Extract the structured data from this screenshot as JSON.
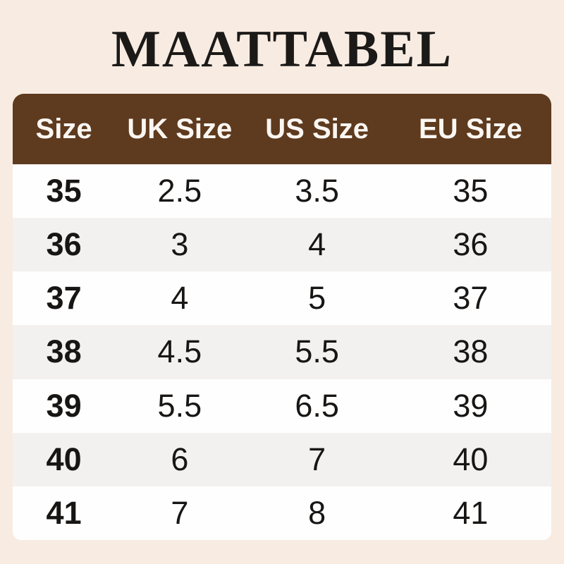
{
  "page": {
    "background_color": "#f8ece2",
    "title": "MAATTABEL",
    "title_color": "#1c1a18"
  },
  "table": {
    "header_bg_color": "#5e3a1e",
    "header_text_color": "#faf6f2",
    "row_bg_color": "#fefefe",
    "row_alt_bg_color": "#f2f1ef",
    "cell_text_color": "#181614",
    "columns": [
      "Size",
      "UK Size",
      "US Size",
      "EU Size"
    ],
    "rows": [
      [
        "35",
        "2.5",
        "3.5",
        "35"
      ],
      [
        "36",
        "3",
        "4",
        "36"
      ],
      [
        "37",
        "4",
        "5",
        "37"
      ],
      [
        "38",
        "4.5",
        "5.5",
        "38"
      ],
      [
        "39",
        "5.5",
        "6.5",
        "39"
      ],
      [
        "40",
        "6",
        "7",
        "40"
      ],
      [
        "41",
        "7",
        "8",
        "41"
      ]
    ]
  },
  "chart_data": {
    "type": "table",
    "title": "MAATTABEL",
    "columns": [
      "Size",
      "UK Size",
      "US Size",
      "EU Size"
    ],
    "rows": [
      {
        "size": "35",
        "uk": "2.5",
        "us": "3.5",
        "eu": "35"
      },
      {
        "size": "36",
        "uk": "3",
        "us": "4",
        "eu": "36"
      },
      {
        "size": "37",
        "uk": "4",
        "us": "5",
        "eu": "37"
      },
      {
        "size": "38",
        "uk": "4.5",
        "us": "5.5",
        "eu": "38"
      },
      {
        "size": "39",
        "uk": "5.5",
        "us": "6.5",
        "eu": "39"
      },
      {
        "size": "40",
        "uk": "6",
        "us": "7",
        "eu": "40"
      },
      {
        "size": "41",
        "uk": "7",
        "us": "8",
        "eu": "41"
      }
    ]
  }
}
